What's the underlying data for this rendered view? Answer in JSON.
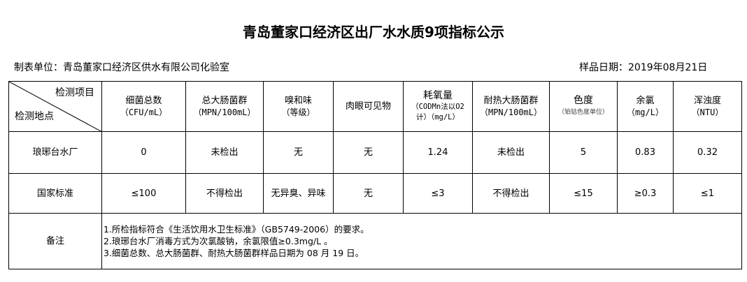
{
  "title": "青岛董家口经济区出厂水水质9项指标公示",
  "unit": "制表单位：青岛董家口经济区供水有限公司化验室",
  "date": "样品日期：2019年08月21日",
  "corner": {
    "top": "检测项目",
    "bottom": "检测地点"
  },
  "headers": [
    {
      "name": "细菌总数",
      "unit": "（CFU/mL）"
    },
    {
      "name": "总大肠菌群",
      "unit": "（MPN/100mL）"
    },
    {
      "name": "嗅和味",
      "unit": "（等级）"
    },
    {
      "name": "肉眼可见物",
      "unit": ""
    },
    {
      "name": "耗氧量",
      "unit": "（CODMn法以O2计）（mg/L）"
    },
    {
      "name": "耐热大肠菌群",
      "unit": "（MPN/100mL）"
    },
    {
      "name": "色度",
      "unit": "（铂钴色度单位）"
    },
    {
      "name": "余氯",
      "unit": "（mg/L）"
    },
    {
      "name": "浑浊度",
      "unit": "（NTU）"
    }
  ],
  "rows": [
    {
      "label": "琅琊台水厂",
      "values": [
        "0",
        "未检出",
        "无",
        "无",
        "1.24",
        "未检出",
        "5",
        "0.83",
        "0.32"
      ]
    },
    {
      "label": "国家标准",
      "values": [
        "≤100",
        "不得检出",
        "无异臭、异味",
        "无",
        "≤3",
        "不得检出",
        "≤15",
        "≥0.3",
        "≤1"
      ]
    }
  ],
  "remarks": {
    "label": "备注",
    "lines": [
      "1.所检指标符合《生活饮用水卫生标准》（GB5749-2006）的要求。",
      "2.琅琊台水厂消毒方式为次氯酸钠，余氯限值≥0.3mg/L 。",
      "3.细菌总数、总大肠菌群、耐热大肠菌群样品日期为 08 月 19 日。"
    ]
  }
}
